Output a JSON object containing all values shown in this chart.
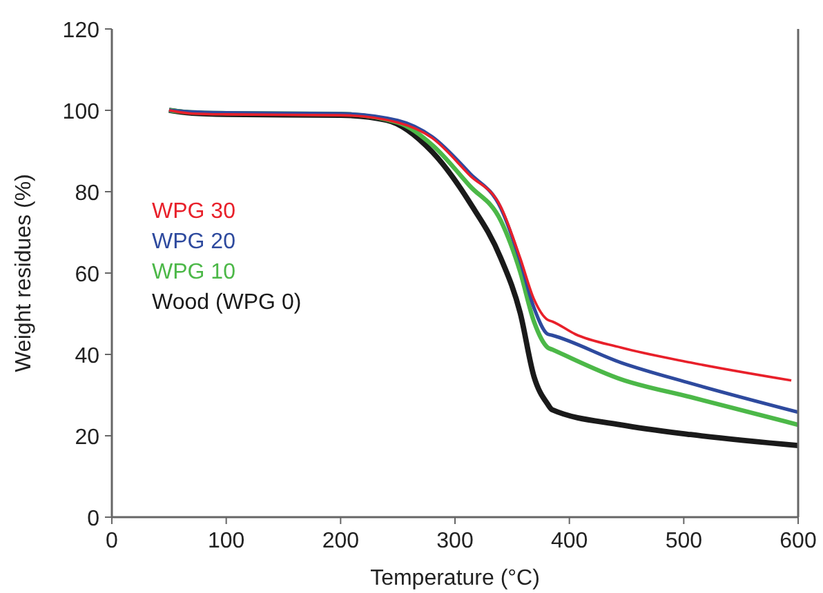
{
  "chart_data": {
    "type": "line",
    "xlabel": "Temperature (°C)",
    "ylabel": "Weight residues (%)",
    "xlim": [
      0,
      600
    ],
    "ylim": [
      0,
      120
    ],
    "xticks": [
      0,
      100,
      200,
      300,
      400,
      500,
      600
    ],
    "yticks": [
      0,
      20,
      40,
      60,
      80,
      100,
      120
    ],
    "grid": false,
    "legend": "left",
    "marker": "none",
    "line_style": "solid",
    "series": [
      {
        "name": "WPG 30",
        "color": "#e8202a",
        "x": [
          50,
          70,
          100,
          200,
          250,
          280,
          313,
          340,
          357,
          369,
          381,
          385,
          405,
          445,
          506,
          594
        ],
        "values": [
          100,
          99.2,
          99,
          98.8,
          97,
          93.2,
          84,
          76.3,
          63.7,
          53.6,
          48.5,
          48.1,
          45,
          41.7,
          38,
          33.6
        ]
      },
      {
        "name": "WPG 20",
        "color": "#2e4a9e",
        "x": [
          50,
          70,
          100,
          200,
          250,
          280,
          313,
          340,
          357,
          369,
          381,
          385,
          445,
          506,
          600
        ],
        "values": [
          100,
          99.6,
          99.4,
          99.2,
          97.5,
          93.5,
          84.5,
          76,
          63,
          51.5,
          45,
          44.7,
          38,
          32.9,
          25.8
        ]
      },
      {
        "name": "WPG 10",
        "color": "#4cb848",
        "x": [
          50,
          70,
          100,
          200,
          250,
          280,
          313,
          340,
          357,
          369,
          381,
          385,
          445,
          506,
          600
        ],
        "values": [
          100,
          99.5,
          99.3,
          99.1,
          97,
          91.5,
          81.4,
          72.9,
          60.3,
          48.1,
          41.7,
          41.2,
          33.9,
          29.5,
          22.7
        ]
      },
      {
        "name": "Wood (WPG 0)",
        "color": "#1a1a1a",
        "x": [
          50,
          70,
          100,
          200,
          240,
          280,
          313,
          340,
          357,
          369,
          381,
          385,
          445,
          506,
          600
        ],
        "values": [
          100,
          99.3,
          99,
          98.8,
          97.6,
          89.8,
          77.3,
          63.7,
          50.2,
          34.6,
          27.8,
          26.4,
          22.7,
          20.3,
          17.6
        ]
      }
    ]
  }
}
